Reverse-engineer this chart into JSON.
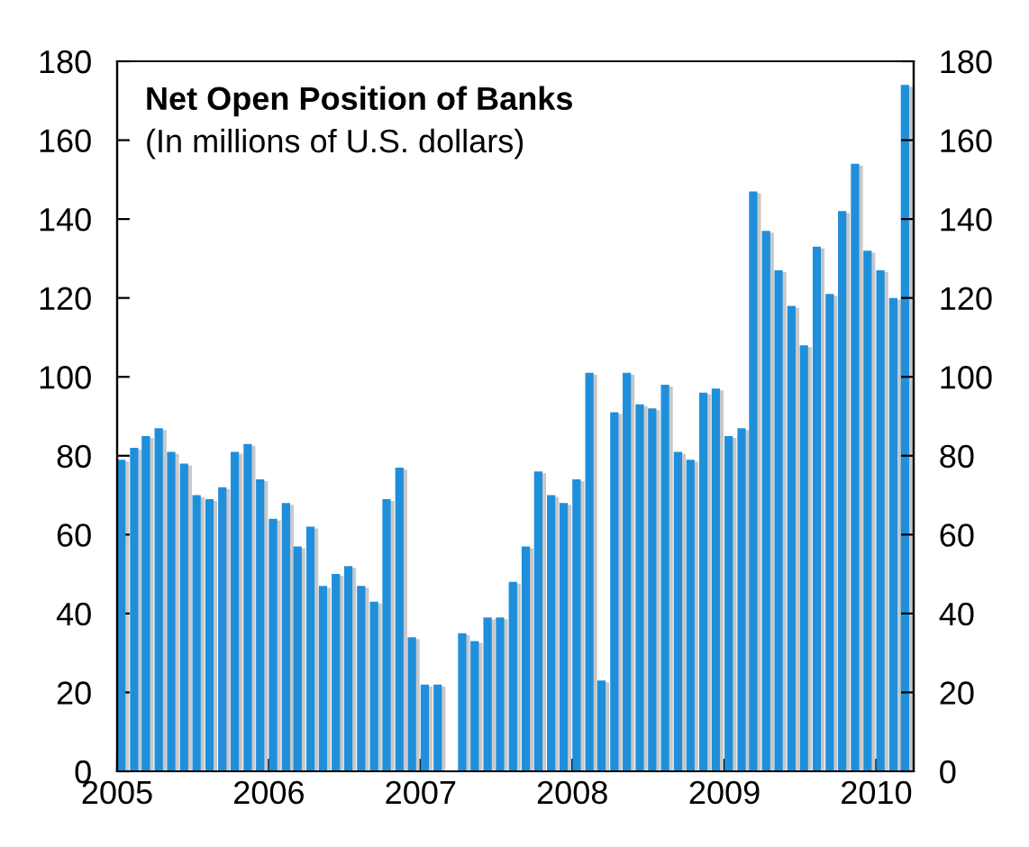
{
  "chart_data": {
    "type": "bar",
    "title": "Net Open Position of Banks",
    "subtitle": "(In millions of U.S. dollars)",
    "x": [
      "2005-01",
      "2005-02",
      "2005-03",
      "2005-04",
      "2005-05",
      "2005-06",
      "2005-07",
      "2005-08",
      "2005-09",
      "2005-10",
      "2005-11",
      "2005-12",
      "2006-01",
      "2006-02",
      "2006-03",
      "2006-04",
      "2006-05",
      "2006-06",
      "2006-07",
      "2006-08",
      "2006-09",
      "2006-10",
      "2006-11",
      "2006-12",
      "2007-01",
      "2007-02",
      "2007-03",
      "2007-04",
      "2007-05",
      "2007-06",
      "2007-07",
      "2007-08",
      "2007-09",
      "2007-10",
      "2007-11",
      "2007-12",
      "2008-01",
      "2008-02",
      "2008-03",
      "2008-04",
      "2008-05",
      "2008-06",
      "2008-07",
      "2008-08",
      "2008-09",
      "2008-10",
      "2008-11",
      "2008-12",
      "2009-01",
      "2009-02",
      "2009-03",
      "2009-04",
      "2009-05",
      "2009-06",
      "2009-07",
      "2009-08",
      "2009-09",
      "2009-10",
      "2009-11",
      "2009-12",
      "2010-01",
      "2010-02",
      "2010-03"
    ],
    "values": [
      79,
      82,
      85,
      87,
      81,
      78,
      70,
      69,
      72,
      81,
      83,
      74,
      64,
      68,
      57,
      62,
      47,
      50,
      52,
      47,
      43,
      69,
      77,
      34,
      22,
      22,
      null,
      35,
      33,
      39,
      39,
      48,
      57,
      76,
      70,
      68,
      74,
      101,
      23,
      91,
      101,
      93,
      92,
      98,
      81,
      79,
      96,
      97,
      85,
      87,
      147,
      137,
      127,
      118,
      108,
      133,
      121,
      142,
      154,
      132,
      127,
      120,
      174
    ],
    "color": "#1f8fdc",
    "xlim": [
      "2005-01",
      "2010-04"
    ],
    "xticks": [
      "2005",
      "2006",
      "2007",
      "2008",
      "2009",
      "2010"
    ],
    "ylim": [
      0,
      180
    ],
    "yticks": [
      0,
      20,
      40,
      60,
      80,
      100,
      120,
      140,
      160,
      180
    ],
    "y2lim": [
      0,
      180
    ],
    "y2ticks": [
      0,
      20,
      40,
      60,
      80,
      100,
      120,
      140,
      160,
      180
    ],
    "grid": false,
    "legend": false
  }
}
